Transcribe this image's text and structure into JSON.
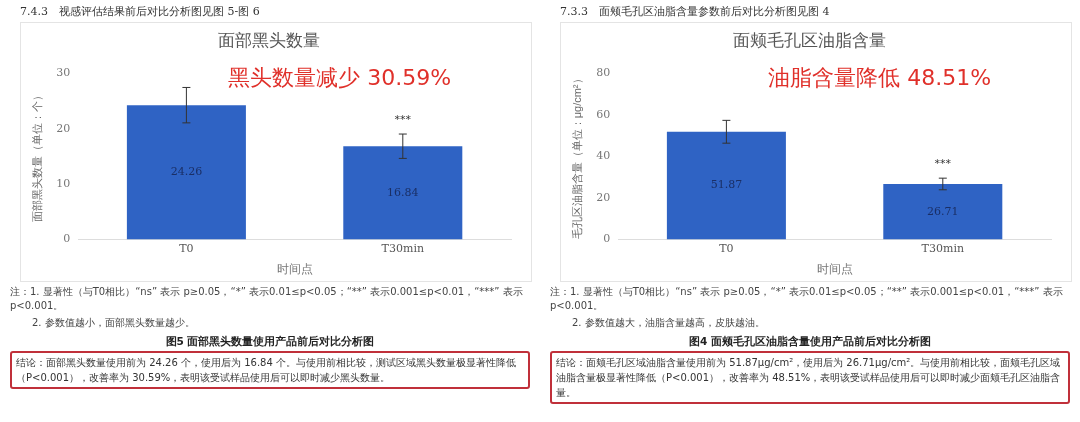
{
  "chart_data": [
    {
      "type": "bar",
      "subtitle": "7.4.3　视感评估结果前后对比分析图见图 5-图 6",
      "title": "面部黑头数量",
      "xlabel": "时间点",
      "ylabel": "面部黑头数量（单位：个）",
      "categories": [
        "T0",
        "T30min"
      ],
      "values": [
        24.26,
        16.84
      ],
      "errors": [
        3.2,
        2.2
      ],
      "color": "#2f63c4",
      "ylim": [
        0,
        30
      ],
      "yticks": [
        0,
        10,
        20,
        30
      ],
      "data_labels": true,
      "grid": false,
      "legend": false,
      "annotations": [
        "黑头数量减少 30.59%",
        "***",
        "注：1. 显著性（与T0相比）“ns” 表示 p≥0.05，“*” 表示0.01≤p<0.05；“**” 表示0.001≤p<0.01，“***” 表示p<0.001。",
        "2. 参数值越小，面部黑头数量越少。",
        "图5 面部黑头数量使用产品前后对比分析图",
        "结论：面部黑头数量使用前为 24.26 个，使用后为 16.84 个。与使用前相比较，测试区域黑头数量极显著性降低（P<0.001），改善率为 30.59%，表明该受试样品使用后可以即时减少黑头数量。"
      ]
    },
    {
      "type": "bar",
      "subtitle": "7.3.3　面颊毛孔区油脂含量参数前后对比分析图见图 4",
      "title": "面颊毛孔区油脂含量",
      "xlabel": "时间点",
      "ylabel": "毛孔区油脂含量（单位：μg/cm²）",
      "categories": [
        "T0",
        "T30min"
      ],
      "values": [
        51.87,
        26.71
      ],
      "errors": [
        5.5,
        2.8
      ],
      "color": "#2f63c4",
      "ylim": [
        0,
        80
      ],
      "yticks": [
        0,
        20,
        40,
        60,
        80
      ],
      "data_labels": true,
      "grid": false,
      "legend": false,
      "annotations": [
        "油脂含量降低 48.51%",
        "***",
        "注：1. 显著性（与T0相比）“ns” 表示 p≥0.05，“*” 表示0.01≤p<0.05；“**” 表示0.001≤p<0.01，“***” 表示p<0.001。",
        "2. 参数值越大，油脂含量越高，皮肤越油。",
        "图4 面颊毛孔区油脂含量使用产品前后对比分析图",
        "结论：面颊毛孔区域油脂含量使用前为 51.87μg/cm²，使用后为 26.71μg/cm²。与使用前相比较，面颊毛孔区域油脂含量极显著性降低（P<0.001），改善率为 48.51%，表明该受试样品使用后可以即时减少面颊毛孔区油脂含量。"
      ]
    }
  ]
}
